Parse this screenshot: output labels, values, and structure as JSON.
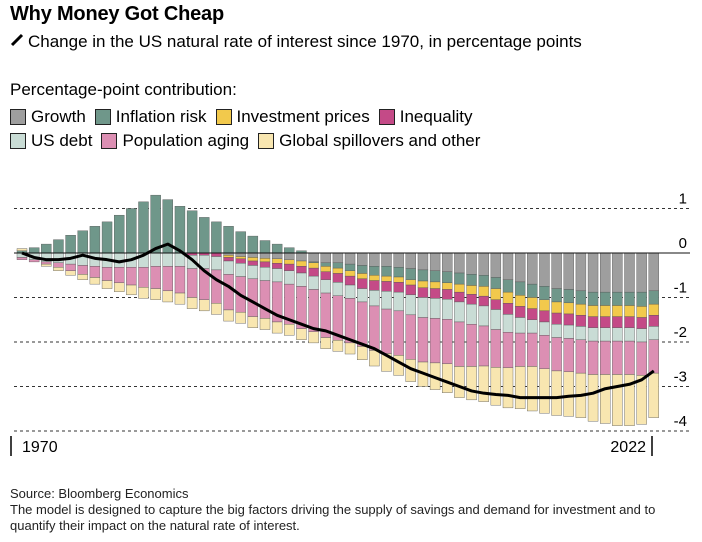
{
  "title": "Why Money Got Cheap",
  "subtitle": "Change in the US natural rate of interest since 1970, in percentage points",
  "legend_heading": "Percentage-point contribution:",
  "legend": [
    {
      "name": "Growth",
      "color": "#9e9e9e"
    },
    {
      "name": "Inflation risk",
      "color": "#6f978a"
    },
    {
      "name": "Investment prices",
      "color": "#f2c94c"
    },
    {
      "name": "Inequality",
      "color": "#c44a87"
    },
    {
      "name": "US debt",
      "color": "#c9dcd5"
    },
    {
      "name": "Population aging",
      "color": "#dc8fb3"
    },
    {
      "name": "Global spillovers and other",
      "color": "#f8e6b0"
    }
  ],
  "source": "Source: Bloomberg Economics",
  "note": "The model is designed to capture the big factors driving the supply of savings and demand for investment and to quantify their impact on the natural rate of interest.",
  "chart_data": {
    "type": "bar",
    "subtype": "stacked bar with line",
    "x_tick_labels": [
      "1970",
      "2022"
    ],
    "y_ticks": [
      1,
      0,
      -1,
      -2,
      -3,
      -4
    ],
    "ylim": [
      -4.3,
      1.3
    ],
    "grid": "dashed horizontal",
    "categories": [
      1970,
      1971,
      1972,
      1973,
      1974,
      1975,
      1976,
      1977,
      1978,
      1979,
      1980,
      1981,
      1982,
      1983,
      1984,
      1985,
      1986,
      1987,
      1988,
      1989,
      1990,
      1991,
      1992,
      1993,
      1994,
      1995,
      1996,
      1997,
      1998,
      1999,
      2000,
      2001,
      2002,
      2003,
      2004,
      2005,
      2006,
      2007,
      2008,
      2009,
      2010,
      2011,
      2012,
      2013,
      2014,
      2015,
      2016,
      2017,
      2018,
      2019,
      2020,
      2021,
      2022
    ],
    "series": [
      {
        "name": "Growth",
        "values": [
          0,
          0,
          0,
          0,
          0,
          0,
          0,
          0,
          0,
          0,
          0,
          0,
          0,
          0,
          0,
          0,
          0,
          -0.05,
          -0.08,
          -0.1,
          -0.12,
          -0.13,
          -0.15,
          -0.18,
          -0.2,
          -0.22,
          -0.22,
          -0.25,
          -0.28,
          -0.3,
          -0.3,
          -0.32,
          -0.35,
          -0.38,
          -0.4,
          -0.42,
          -0.45,
          -0.48,
          -0.5,
          -0.55,
          -0.6,
          -0.65,
          -0.7,
          -0.75,
          -0.8,
          -0.82,
          -0.85,
          -0.88,
          -0.88,
          -0.88,
          -0.88,
          -0.88,
          -0.85
        ]
      },
      {
        "name": "Inflation risk",
        "values": [
          0.05,
          0.12,
          0.2,
          0.3,
          0.4,
          0.5,
          0.6,
          0.7,
          0.85,
          1.0,
          1.15,
          1.3,
          1.2,
          1.05,
          0.95,
          0.8,
          0.7,
          0.6,
          0.48,
          0.38,
          0.28,
          0.2,
          0.12,
          0.05,
          -0.02,
          -0.08,
          -0.12,
          -0.15,
          -0.18,
          -0.2,
          -0.22,
          -0.22,
          -0.25,
          -0.25,
          -0.25,
          -0.25,
          -0.25,
          -0.25,
          -0.25,
          -0.25,
          -0.28,
          -0.3,
          -0.3,
          -0.3,
          -0.3,
          -0.3,
          -0.3,
          -0.3,
          -0.3,
          -0.3,
          -0.3,
          -0.32,
          -0.3
        ]
      },
      {
        "name": "Investment prices",
        "values": [
          0,
          0,
          0,
          0,
          0,
          0,
          0,
          0,
          0,
          0,
          0,
          0,
          0,
          0,
          0,
          0,
          0,
          -0.05,
          -0.05,
          -0.08,
          -0.08,
          -0.1,
          -0.1,
          -0.12,
          -0.12,
          -0.12,
          -0.12,
          -0.12,
          -0.12,
          -0.12,
          -0.12,
          -0.12,
          -0.12,
          -0.15,
          -0.15,
          -0.15,
          -0.18,
          -0.2,
          -0.22,
          -0.25,
          -0.25,
          -0.25,
          -0.25,
          -0.25,
          -0.25,
          -0.25,
          -0.25,
          -0.25,
          -0.25,
          -0.25,
          -0.25,
          -0.25,
          -0.25
        ]
      },
      {
        "name": "Inequality",
        "values": [
          0,
          0,
          0,
          0,
          0,
          0,
          0,
          0,
          0,
          0,
          0,
          0,
          0,
          0,
          -0.05,
          -0.05,
          -0.08,
          -0.08,
          -0.1,
          -0.1,
          -0.12,
          -0.12,
          -0.15,
          -0.15,
          -0.18,
          -0.18,
          -0.2,
          -0.2,
          -0.22,
          -0.22,
          -0.22,
          -0.22,
          -0.22,
          -0.22,
          -0.22,
          -0.22,
          -0.22,
          -0.22,
          -0.22,
          -0.22,
          -0.25,
          -0.25,
          -0.25,
          -0.25,
          -0.25,
          -0.25,
          -0.25,
          -0.25,
          -0.25,
          -0.25,
          -0.25,
          -0.25,
          -0.25
        ]
      },
      {
        "name": "US debt",
        "values": [
          -0.1,
          -0.15,
          -0.2,
          -0.22,
          -0.25,
          -0.28,
          -0.3,
          -0.32,
          -0.32,
          -0.32,
          -0.32,
          -0.3,
          -0.3,
          -0.3,
          -0.3,
          -0.3,
          -0.3,
          -0.3,
          -0.3,
          -0.3,
          -0.3,
          -0.3,
          -0.3,
          -0.3,
          -0.3,
          -0.3,
          -0.3,
          -0.3,
          -0.3,
          -0.35,
          -0.4,
          -0.42,
          -0.45,
          -0.45,
          -0.45,
          -0.45,
          -0.45,
          -0.45,
          -0.45,
          -0.45,
          -0.4,
          -0.35,
          -0.3,
          -0.3,
          -0.3,
          -0.3,
          -0.3,
          -0.3,
          -0.3,
          -0.3,
          -0.3,
          -0.3,
          -0.3
        ]
      },
      {
        "name": "Population aging",
        "values": [
          -0.05,
          -0.05,
          -0.05,
          -0.1,
          -0.15,
          -0.2,
          -0.25,
          -0.3,
          -0.35,
          -0.4,
          -0.45,
          -0.5,
          -0.55,
          -0.6,
          -0.65,
          -0.7,
          -0.75,
          -0.8,
          -0.8,
          -0.85,
          -0.85,
          -0.9,
          -0.9,
          -0.95,
          -0.95,
          -1.0,
          -1.0,
          -1.0,
          -1.0,
          -1.0,
          -1.0,
          -1.0,
          -1.0,
          -1.0,
          -1.0,
          -1.0,
          -1.0,
          -0.95,
          -0.9,
          -0.85,
          -0.8,
          -0.75,
          -0.75,
          -0.75,
          -0.75,
          -0.75,
          -0.75,
          -0.75,
          -0.75,
          -0.75,
          -0.75,
          -0.75,
          -0.75
        ]
      },
      {
        "name": "Global spillovers and other",
        "values": [
          0.05,
          0,
          -0.05,
          -0.08,
          -0.1,
          -0.12,
          -0.15,
          -0.18,
          -0.2,
          -0.22,
          -0.25,
          -0.25,
          -0.25,
          -0.25,
          -0.25,
          -0.25,
          -0.25,
          -0.25,
          -0.25,
          -0.25,
          -0.25,
          -0.25,
          -0.25,
          -0.25,
          -0.25,
          -0.25,
          -0.25,
          -0.25,
          -0.3,
          -0.35,
          -0.4,
          -0.45,
          -0.5,
          -0.55,
          -0.6,
          -0.65,
          -0.7,
          -0.75,
          -0.8,
          -0.85,
          -0.9,
          -0.95,
          -1.0,
          -1.0,
          -1.0,
          -1.0,
          -1.0,
          -1.05,
          -1.1,
          -1.15,
          -1.15,
          -1.1,
          -1.0
        ]
      },
      {
        "name": "Natural rate change",
        "type": "line",
        "values": [
          0,
          -0.1,
          -0.15,
          -0.15,
          -0.12,
          -0.05,
          -0.12,
          -0.15,
          -0.2,
          -0.15,
          -0.05,
          0.1,
          0.2,
          0.05,
          -0.15,
          -0.4,
          -0.6,
          -0.75,
          -0.95,
          -1.1,
          -1.25,
          -1.4,
          -1.5,
          -1.6,
          -1.7,
          -1.75,
          -1.85,
          -1.95,
          -2.05,
          -2.15,
          -2.3,
          -2.45,
          -2.6,
          -2.7,
          -2.8,
          -2.9,
          -3.0,
          -3.1,
          -3.15,
          -3.18,
          -3.2,
          -3.25,
          -3.25,
          -3.25,
          -3.25,
          -3.22,
          -3.2,
          -3.15,
          -3.05,
          -3.0,
          -2.95,
          -2.85,
          -2.65
        ]
      }
    ]
  }
}
